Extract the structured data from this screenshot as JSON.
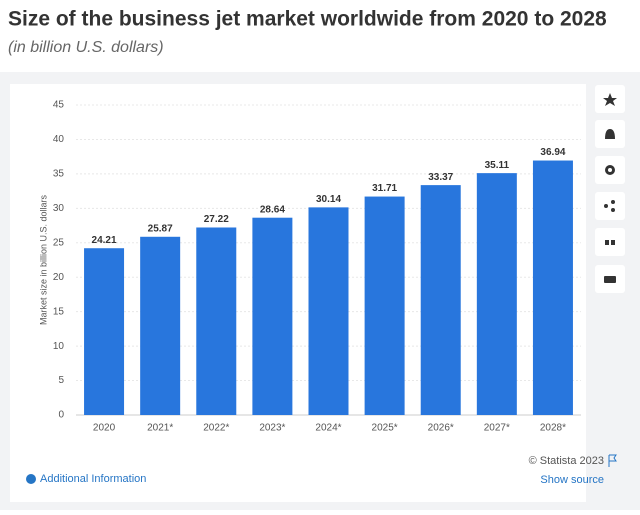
{
  "chart_data": {
    "type": "bar",
    "title": "Size of the business jet market worldwide from 2020 to 2028",
    "subtitle": "(in billion U.S. dollars)",
    "y_label": "Market size in billion U.S. dollars",
    "categories": [
      "2020",
      "2021*",
      "2022*",
      "2023*",
      "2024*",
      "2025*",
      "2026*",
      "2027*",
      "2028*"
    ],
    "values": [
      24.21,
      25.87,
      27.22,
      28.64,
      30.14,
      31.71,
      33.37,
      35.11,
      36.94
    ],
    "color": "#2876dd",
    "ylim": [
      0,
      45
    ],
    "yticks": [
      0,
      5,
      10,
      15,
      20,
      25,
      30,
      35,
      40,
      45
    ],
    "grid": true
  },
  "footer": {
    "copyright": "© Statista 2023",
    "additional_info": "Additional Information",
    "show_source": "Show source"
  }
}
